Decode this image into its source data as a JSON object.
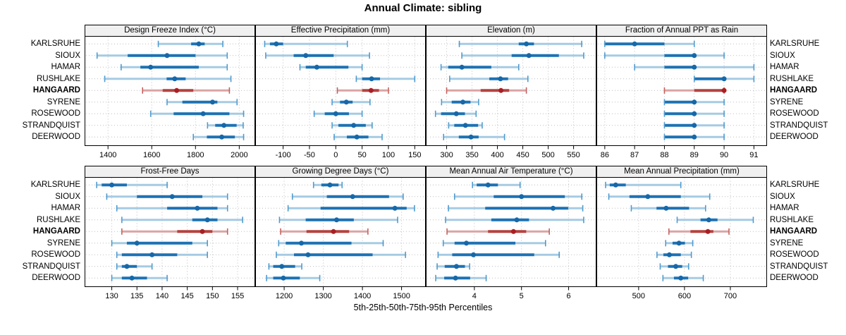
{
  "title": "Annual Climate: sibling",
  "caption": "5th-25th-50th-75th-95th Percentiles",
  "stations": [
    "KARLSRUHE",
    "SIOUX",
    "HAMAR",
    "RUSHLAKE",
    "HANGAARD",
    "SYRENE",
    "ROSEWOOD",
    "STRANDQUIST",
    "DEERWOOD"
  ],
  "highlight_station": "HANGAARD",
  "percentile_labels": [
    "5th",
    "25th",
    "50th",
    "75th",
    "95th"
  ],
  "colors": {
    "blue_light": "#a6cbe3",
    "blue_band": "#1d72b4",
    "blue_dot": "#1668a8",
    "blue_cap": "#4f9bce",
    "red_light": "#dba4a4",
    "red_band": "#b5423e",
    "red_dot": "#a81f24",
    "red_cap": "#c4615e",
    "grid": "#bdbdbd",
    "strip_bg": "#f0f0f0",
    "border": "#000000"
  },
  "chart_data": [
    {
      "type": "interval",
      "title": "Design Freeze Index (°C)",
      "xlim": [
        1293,
        2073
      ],
      "ticks": [
        1400,
        1600,
        1800,
        2000
      ],
      "series": [
        {
          "name": "KARLSRUHE",
          "values": [
            1630,
            1780,
            1815,
            1842,
            1925
          ]
        },
        {
          "name": "SIOUX",
          "values": [
            1350,
            1490,
            1670,
            1800,
            1945
          ]
        },
        {
          "name": "HAMAR",
          "values": [
            1460,
            1548,
            1595,
            1815,
            1945
          ]
        },
        {
          "name": "RUSHLAKE",
          "values": [
            1385,
            1668,
            1705,
            1755,
            1962
          ]
        },
        {
          "name": "HANGAARD",
          "values": [
            1558,
            1650,
            1714,
            1790,
            1955
          ]
        },
        {
          "name": "SYRENE",
          "values": [
            1670,
            1740,
            1878,
            1900,
            1990
          ]
        },
        {
          "name": "ROSEWOOD",
          "values": [
            1595,
            1700,
            1835,
            1955,
            2020
          ]
        },
        {
          "name": "STRANDQUIST",
          "values": [
            1855,
            1890,
            1930,
            1988,
            2018
          ]
        },
        {
          "name": "DEERWOOD",
          "values": [
            1790,
            1852,
            1920,
            1980,
            2020
          ]
        }
      ]
    },
    {
      "type": "interval",
      "title": "Effective Precipitation (mm)",
      "xlim": [
        -153,
        171
      ],
      "ticks": [
        -100,
        -50,
        0,
        50,
        100,
        150
      ],
      "series": [
        {
          "name": "KARLSRUHE",
          "values": [
            -135,
            -125,
            -113,
            -100,
            22
          ]
        },
        {
          "name": "SIOUX",
          "values": [
            -133,
            -80,
            -57,
            -4,
            64
          ]
        },
        {
          "name": "HAMAR",
          "values": [
            -68,
            -57,
            -36,
            24,
            50
          ]
        },
        {
          "name": "RUSHLAKE",
          "values": [
            39,
            50,
            68,
            84,
            150
          ]
        },
        {
          "name": "HANGAARD",
          "values": [
            3,
            50,
            67,
            82,
            100
          ]
        },
        {
          "name": "SYRENE",
          "values": [
            -7,
            8,
            20,
            32,
            65
          ]
        },
        {
          "name": "ROSEWOOD",
          "values": [
            -41,
            -21,
            0,
            25,
            50
          ]
        },
        {
          "name": "STRANDQUIST",
          "values": [
            -7,
            5,
            34,
            57,
            69
          ]
        },
        {
          "name": "DEERWOOD",
          "values": [
            -3,
            21,
            40,
            62,
            88
          ]
        }
      ]
    },
    {
      "type": "interval",
      "title": "Elevation (m)",
      "xlim": [
        259,
        595
      ],
      "ticks": [
        300,
        350,
        400,
        450,
        500,
        550
      ],
      "series": [
        {
          "name": "KARLSRUHE",
          "values": [
            325,
            442,
            457,
            472,
            566
          ]
        },
        {
          "name": "SIOUX",
          "values": [
            330,
            428,
            462,
            521,
            570
          ]
        },
        {
          "name": "HAMAR",
          "values": [
            289,
            303,
            330,
            388,
            442
          ]
        },
        {
          "name": "RUSHLAKE",
          "values": [
            306,
            384,
            406,
            421,
            460
          ]
        },
        {
          "name": "HANGAARD",
          "values": [
            300,
            367,
            407,
            423,
            457
          ]
        },
        {
          "name": "SYRENE",
          "values": [
            290,
            310,
            332,
            347,
            363
          ]
        },
        {
          "name": "ROSEWOOD",
          "values": [
            278,
            289,
            319,
            336,
            358
          ]
        },
        {
          "name": "STRANDQUIST",
          "values": [
            304,
            315,
            337,
            362,
            370
          ]
        },
        {
          "name": "DEERWOOD",
          "values": [
            294,
            324,
            348,
            363,
            414
          ]
        }
      ]
    },
    {
      "type": "interval",
      "title": "Fraction of Annual PPT as Rain",
      "xlim": [
        85.72,
        91.44
      ],
      "ticks": [
        86,
        87,
        88,
        89,
        90,
        91
      ],
      "series": [
        {
          "name": "KARLSRUHE",
          "values": [
            86,
            86,
            87,
            88,
            89
          ]
        },
        {
          "name": "SIOUX",
          "values": [
            86,
            88,
            89,
            89,
            90
          ]
        },
        {
          "name": "HAMAR",
          "values": [
            87,
            88,
            89,
            89,
            91
          ]
        },
        {
          "name": "RUSHLAKE",
          "values": [
            89,
            89,
            90,
            90,
            91
          ]
        },
        {
          "name": "HANGAARD",
          "values": [
            88,
            89,
            90,
            90,
            90
          ]
        },
        {
          "name": "SYRENE",
          "values": [
            88,
            88,
            89,
            89,
            90
          ]
        },
        {
          "name": "ROSEWOOD",
          "values": [
            88,
            88,
            89,
            89,
            90
          ]
        },
        {
          "name": "STRANDQUIST",
          "values": [
            88,
            88,
            89,
            89,
            90
          ]
        },
        {
          "name": "DEERWOOD",
          "values": [
            88,
            88,
            89,
            89,
            90
          ]
        }
      ]
    },
    {
      "type": "interval",
      "title": "Frost-Free Days",
      "xlim": [
        124.6,
        158.5
      ],
      "ticks": [
        130,
        135,
        140,
        145,
        150,
        155
      ],
      "series": [
        {
          "name": "KARLSRUHE",
          "values": [
            127,
            128,
            130,
            133,
            141
          ]
        },
        {
          "name": "SIOUX",
          "values": [
            129,
            135,
            142,
            148,
            153
          ]
        },
        {
          "name": "HAMAR",
          "values": [
            131,
            141,
            147,
            151,
            153
          ]
        },
        {
          "name": "RUSHLAKE",
          "values": [
            132,
            146,
            149,
            151,
            156
          ]
        },
        {
          "name": "HANGAARD",
          "values": [
            132,
            143,
            148,
            150,
            153
          ]
        },
        {
          "name": "SYRENE",
          "values": [
            130,
            133,
            135,
            146,
            149
          ]
        },
        {
          "name": "ROSEWOOD",
          "values": [
            131,
            132,
            138,
            143,
            149
          ]
        },
        {
          "name": "STRANDQUIST",
          "values": [
            131,
            132,
            133,
            135,
            138
          ]
        },
        {
          "name": "DEERWOOD",
          "values": [
            130,
            132,
            134,
            137,
            141
          ]
        }
      ]
    },
    {
      "type": "interval",
      "title": "Growing Degree Days (°C)",
      "xlim": [
        1126,
        1562
      ],
      "ticks": [
        1200,
        1300,
        1400,
        1500
      ],
      "series": [
        {
          "name": "KARLSRUHE",
          "values": [
            1275,
            1295,
            1317,
            1339,
            1348
          ]
        },
        {
          "name": "SIOUX",
          "values": [
            1221,
            1309,
            1375,
            1468,
            1504
          ]
        },
        {
          "name": "HAMAR",
          "values": [
            1210,
            1293,
            1483,
            1513,
            1533
          ]
        },
        {
          "name": "RUSHLAKE",
          "values": [
            1188,
            1255,
            1334,
            1378,
            1490
          ]
        },
        {
          "name": "HANGAARD",
          "values": [
            1191,
            1257,
            1326,
            1366,
            1414
          ]
        },
        {
          "name": "SYRENE",
          "values": [
            1186,
            1204,
            1244,
            1372,
            1453
          ]
        },
        {
          "name": "ROSEWOOD",
          "values": [
            1180,
            1225,
            1261,
            1426,
            1510
          ]
        },
        {
          "name": "STRANDQUIST",
          "values": [
            1161,
            1172,
            1194,
            1228,
            1245
          ]
        },
        {
          "name": "DEERWOOD",
          "values": [
            1155,
            1172,
            1198,
            1240,
            1291
          ]
        }
      ]
    },
    {
      "type": "interval",
      "title": "Mean Annual Air Temperature (°C)",
      "xlim": [
        2.97,
        6.59
      ],
      "ticks": [
        4,
        5,
        6
      ],
      "series": [
        {
          "name": "KARLSRUHE",
          "values": [
            3.96,
            4.05,
            4.29,
            4.5,
            4.97
          ]
        },
        {
          "name": "SIOUX",
          "values": [
            3.58,
            4.41,
            5.0,
            5.92,
            6.28
          ]
        },
        {
          "name": "HAMAR",
          "values": [
            3.45,
            4.23,
            5.67,
            5.99,
            6.3
          ]
        },
        {
          "name": "RUSHLAKE",
          "values": [
            3.39,
            4.36,
            4.9,
            5.16,
            6.32
          ]
        },
        {
          "name": "HANGAARD",
          "values": [
            3.42,
            4.29,
            4.83,
            5.1,
            5.59
          ]
        },
        {
          "name": "SYRENE",
          "values": [
            3.34,
            3.58,
            3.83,
            4.87,
            5.51
          ]
        },
        {
          "name": "ROSEWOOD",
          "values": [
            3.23,
            3.53,
            3.98,
            5.27,
            5.8
          ]
        },
        {
          "name": "STRANDQUIST",
          "values": [
            3.21,
            3.37,
            3.62,
            3.8,
            3.9
          ]
        },
        {
          "name": "DEERWOOD",
          "values": [
            3.18,
            3.36,
            3.6,
            3.91,
            4.25
          ]
        }
      ]
    },
    {
      "type": "interval",
      "title": "Mean Annual Precipitation (mm)",
      "xlim": [
        408,
        780
      ],
      "ticks": [
        500,
        600,
        700
      ],
      "series": [
        {
          "name": "KARLSRUHE",
          "values": [
            428,
            437,
            450,
            472,
            592
          ]
        },
        {
          "name": "SIOUX",
          "values": [
            435,
            480,
            520,
            592,
            655
          ]
        },
        {
          "name": "HAMAR",
          "values": [
            484,
            539,
            560,
            610,
            646
          ]
        },
        {
          "name": "RUSHLAKE",
          "values": [
            584,
            635,
            653,
            672,
            750
          ]
        },
        {
          "name": "HANGAARD",
          "values": [
            566,
            613,
            651,
            663,
            697
          ]
        },
        {
          "name": "SYRENE",
          "values": [
            559,
            574,
            588,
            601,
            618
          ]
        },
        {
          "name": "ROSEWOOD",
          "values": [
            540,
            554,
            567,
            592,
            615
          ]
        },
        {
          "name": "STRANDQUIST",
          "values": [
            547,
            564,
            581,
            595,
            609
          ]
        },
        {
          "name": "DEERWOOD",
          "values": [
            553,
            577,
            592,
            608,
            641
          ]
        }
      ]
    }
  ]
}
